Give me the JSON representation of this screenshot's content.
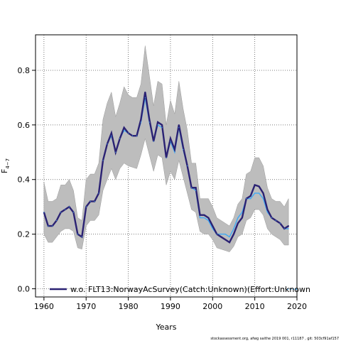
{
  "chart_data": {
    "type": "line",
    "xlabel": "Years",
    "ylabel_main": "F",
    "ylabel_sub": "4−7",
    "xlim": [
      1958,
      2020
    ],
    "ylim": [
      -0.03,
      0.93
    ],
    "x_ticks": [
      1960,
      1970,
      1980,
      1990,
      2000,
      2010,
      2020
    ],
    "y_ticks": [
      0.0,
      0.2,
      0.4,
      0.6,
      0.8
    ],
    "y_tick_labels": [
      "0.0",
      "0.2",
      "0.4",
      "0.6",
      "0.8"
    ],
    "grid": true,
    "legend_position": "bottom",
    "colors": {
      "band": "#bdbdbd",
      "band_edge": "#9a9a9a",
      "main": "#2b2273",
      "alt": "#3fa9f5"
    },
    "series": [
      {
        "name": "w.o. FLT13:NorwayAcSurvey(Catch:Unknown)(Effort:Unknown",
        "years": [
          1960,
          1961,
          1962,
          1963,
          1964,
          1965,
          1966,
          1967,
          1968,
          1969,
          1970,
          1971,
          1972,
          1973,
          1974,
          1975,
          1976,
          1977,
          1978,
          1979,
          1980,
          1981,
          1982,
          1983,
          1984,
          1985,
          1986,
          1987,
          1988,
          1989,
          1990,
          1991,
          1992,
          1993,
          1994,
          1995,
          1996,
          1997,
          1998,
          1999,
          2000,
          2001,
          2002,
          2003,
          2004,
          2005,
          2006,
          2007,
          2008,
          2009,
          2010,
          2011,
          2012,
          2013,
          2014,
          2015,
          2016,
          2017,
          2018
        ],
        "values": [
          0.28,
          0.23,
          0.23,
          0.25,
          0.28,
          0.29,
          0.3,
          0.28,
          0.2,
          0.19,
          0.3,
          0.32,
          0.32,
          0.35,
          0.47,
          0.53,
          0.57,
          0.5,
          0.55,
          0.59,
          0.57,
          0.56,
          0.56,
          0.62,
          0.72,
          0.62,
          0.54,
          0.61,
          0.6,
          0.48,
          0.55,
          0.51,
          0.6,
          0.52,
          0.45,
          0.37,
          0.37,
          0.27,
          0.27,
          0.26,
          0.23,
          0.2,
          0.19,
          0.18,
          0.17,
          0.2,
          0.24,
          0.26,
          0.33,
          0.34,
          0.38,
          0.375,
          0.35,
          0.29,
          0.26,
          0.25,
          0.24,
          0.22,
          0.23
        ]
      },
      {
        "name": "",
        "years": [
          1960,
          1961,
          1962,
          1963,
          1964,
          1965,
          1966,
          1967,
          1968,
          1969,
          1970,
          1971,
          1972,
          1973,
          1974,
          1975,
          1976,
          1977,
          1978,
          1979,
          1980,
          1981,
          1982,
          1983,
          1984,
          1985,
          1986,
          1987,
          1988,
          1989,
          1990,
          1991,
          1992,
          1993,
          1994,
          1995,
          1996,
          1997,
          1998,
          1999,
          2000,
          2001,
          2002,
          2003,
          2004,
          2005,
          2006,
          2007,
          2008,
          2009,
          2010,
          2011,
          2012,
          2013,
          2014,
          2015,
          2016,
          2017,
          2018
        ],
        "values": [
          0.28,
          0.23,
          0.23,
          0.25,
          0.28,
          0.29,
          0.3,
          0.28,
          0.2,
          0.19,
          0.3,
          0.32,
          0.32,
          0.35,
          0.47,
          0.53,
          0.56,
          0.5,
          0.55,
          0.58,
          0.57,
          0.56,
          0.56,
          0.61,
          0.7,
          0.61,
          0.54,
          0.6,
          0.59,
          0.48,
          0.54,
          0.5,
          0.59,
          0.51,
          0.45,
          0.37,
          0.36,
          0.26,
          0.26,
          0.25,
          0.22,
          0.2,
          0.2,
          0.2,
          0.19,
          0.22,
          0.26,
          0.28,
          0.33,
          0.33,
          0.35,
          0.35,
          0.33,
          0.28,
          0.26,
          0.25,
          0.24,
          0.22,
          0.22
        ]
      }
    ],
    "band": {
      "years": [
        1960,
        1961,
        1962,
        1963,
        1964,
        1965,
        1966,
        1967,
        1968,
        1969,
        1970,
        1971,
        1972,
        1973,
        1974,
        1975,
        1976,
        1977,
        1978,
        1979,
        1980,
        1981,
        1982,
        1983,
        1984,
        1985,
        1986,
        1987,
        1988,
        1989,
        1990,
        1991,
        1992,
        1993,
        1994,
        1995,
        1996,
        1997,
        1998,
        1999,
        2000,
        2001,
        2002,
        2003,
        2004,
        2005,
        2006,
        2007,
        2008,
        2009,
        2010,
        2011,
        2012,
        2013,
        2014,
        2015,
        2016,
        2017,
        2018
      ],
      "upper": [
        0.39,
        0.32,
        0.32,
        0.33,
        0.38,
        0.38,
        0.4,
        0.36,
        0.26,
        0.25,
        0.4,
        0.42,
        0.42,
        0.46,
        0.62,
        0.68,
        0.72,
        0.63,
        0.68,
        0.74,
        0.71,
        0.7,
        0.7,
        0.75,
        0.89,
        0.78,
        0.67,
        0.76,
        0.75,
        0.6,
        0.69,
        0.64,
        0.76,
        0.66,
        0.58,
        0.46,
        0.46,
        0.33,
        0.33,
        0.33,
        0.3,
        0.26,
        0.25,
        0.24,
        0.23,
        0.26,
        0.31,
        0.33,
        0.42,
        0.43,
        0.48,
        0.48,
        0.45,
        0.37,
        0.33,
        0.32,
        0.32,
        0.3,
        0.33
      ],
      "lower": [
        0.2,
        0.17,
        0.17,
        0.19,
        0.21,
        0.22,
        0.22,
        0.21,
        0.15,
        0.145,
        0.23,
        0.25,
        0.25,
        0.27,
        0.36,
        0.4,
        0.44,
        0.4,
        0.44,
        0.46,
        0.45,
        0.445,
        0.44,
        0.49,
        0.55,
        0.49,
        0.43,
        0.49,
        0.48,
        0.38,
        0.43,
        0.4,
        0.47,
        0.41,
        0.35,
        0.29,
        0.28,
        0.21,
        0.2,
        0.2,
        0.18,
        0.15,
        0.145,
        0.14,
        0.135,
        0.155,
        0.19,
        0.2,
        0.25,
        0.26,
        0.29,
        0.29,
        0.27,
        0.22,
        0.2,
        0.19,
        0.18,
        0.16,
        0.16
      ]
    }
  },
  "footer": "stockassessment.org, afwg saithe 2019 001, r11187 , git: 503cf91af157"
}
